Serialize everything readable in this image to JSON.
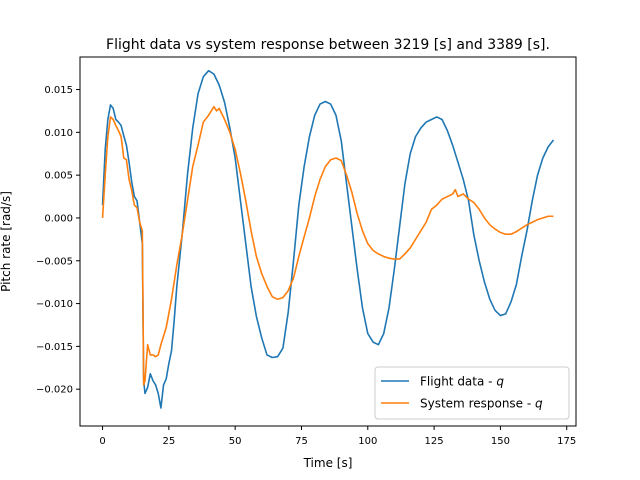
{
  "chart_data": {
    "type": "line",
    "title": "Flight data vs system response between 3219 [s] and 3389 [s].",
    "xlabel": "Time [s]",
    "ylabel": "Pitch rate [rad/s]",
    "xlim": [
      -8.5,
      178.5
    ],
    "ylim": [
      -0.0243,
      0.0188
    ],
    "xticks": [
      0,
      25,
      50,
      75,
      100,
      125,
      150,
      175
    ],
    "xtick_labels": [
      "0",
      "25",
      "50",
      "75",
      "100",
      "125",
      "150",
      "175"
    ],
    "yticks": [
      -0.02,
      -0.015,
      -0.01,
      -0.005,
      0.0,
      0.005,
      0.01,
      0.015
    ],
    "ytick_labels": [
      "−0.020",
      "−0.015",
      "−0.010",
      "−0.005",
      "0.000",
      "0.005",
      "0.010",
      "0.015"
    ],
    "grid": false,
    "legend_position": "lower-right",
    "series": [
      {
        "name": "Flight data - q",
        "color": "#1f77b4",
        "points": [
          [
            0,
            0.0015
          ],
          [
            1,
            0.008
          ],
          [
            2,
            0.0115
          ],
          [
            3,
            0.0132
          ],
          [
            4,
            0.0128
          ],
          [
            5,
            0.0115
          ],
          [
            6,
            0.0112
          ],
          [
            7,
            0.0108
          ],
          [
            8,
            0.0096
          ],
          [
            9,
            0.0085
          ],
          [
            10,
            0.0065
          ],
          [
            11,
            0.0042
          ],
          [
            12,
            0.0025
          ],
          [
            13,
            0.002
          ],
          [
            14,
            -0.0005
          ],
          [
            15,
            -0.003
          ],
          [
            15.5,
            -0.019
          ],
          [
            16,
            -0.0205
          ],
          [
            17,
            -0.0198
          ],
          [
            18,
            -0.0182
          ],
          [
            19,
            -0.019
          ],
          [
            20,
            -0.0195
          ],
          [
            21,
            -0.0205
          ],
          [
            22,
            -0.0222
          ],
          [
            23,
            -0.0195
          ],
          [
            24,
            -0.0188
          ],
          [
            25,
            -0.017
          ],
          [
            26,
            -0.0155
          ],
          [
            27,
            -0.012
          ],
          [
            28,
            -0.008
          ],
          [
            30,
            -0.002
          ],
          [
            32,
            0.005
          ],
          [
            34,
            0.0105
          ],
          [
            36,
            0.0145
          ],
          [
            38,
            0.0165
          ],
          [
            40,
            0.0172
          ],
          [
            42,
            0.0168
          ],
          [
            44,
            0.0155
          ],
          [
            46,
            0.0135
          ],
          [
            48,
            0.0105
          ],
          [
            50,
            0.007
          ],
          [
            52,
            0.002
          ],
          [
            54,
            -0.003
          ],
          [
            56,
            -0.008
          ],
          [
            58,
            -0.0115
          ],
          [
            60,
            -0.014
          ],
          [
            62,
            -0.016
          ],
          [
            64,
            -0.0163
          ],
          [
            66,
            -0.0162
          ],
          [
            68,
            -0.0152
          ],
          [
            70,
            -0.011
          ],
          [
            72,
            -0.005
          ],
          [
            74,
            0.0015
          ],
          [
            76,
            0.006
          ],
          [
            78,
            0.0095
          ],
          [
            80,
            0.012
          ],
          [
            82,
            0.0133
          ],
          [
            84,
            0.0136
          ],
          [
            86,
            0.0133
          ],
          [
            88,
            0.012
          ],
          [
            90,
            0.009
          ],
          [
            92,
            0.004
          ],
          [
            94,
            -0.001
          ],
          [
            96,
            -0.006
          ],
          [
            98,
            -0.0105
          ],
          [
            100,
            -0.0135
          ],
          [
            102,
            -0.0145
          ],
          [
            104,
            -0.0148
          ],
          [
            106,
            -0.0135
          ],
          [
            108,
            -0.0105
          ],
          [
            110,
            -0.006
          ],
          [
            112,
            -0.001
          ],
          [
            114,
            0.004
          ],
          [
            116,
            0.0075
          ],
          [
            118,
            0.0095
          ],
          [
            120,
            0.0105
          ],
          [
            122,
            0.0112
          ],
          [
            124,
            0.0115
          ],
          [
            126,
            0.0118
          ],
          [
            128,
            0.0115
          ],
          [
            130,
            0.0102
          ],
          [
            132,
            0.0085
          ],
          [
            134,
            0.0065
          ],
          [
            136,
            0.0045
          ],
          [
            138,
            0.002
          ],
          [
            140,
            -0.002
          ],
          [
            142,
            -0.005
          ],
          [
            144,
            -0.0075
          ],
          [
            146,
            -0.0095
          ],
          [
            148,
            -0.0108
          ],
          [
            150,
            -0.0114
          ],
          [
            152,
            -0.0112
          ],
          [
            154,
            -0.0098
          ],
          [
            156,
            -0.0078
          ],
          [
            158,
            -0.0045
          ],
          [
            160,
            -0.0015
          ],
          [
            162,
            0.002
          ],
          [
            164,
            0.005
          ],
          [
            166,
            0.007
          ],
          [
            168,
            0.0083
          ],
          [
            170,
            0.0091
          ]
        ]
      },
      {
        "name": "System response - q",
        "color": "#ff7f0e",
        "points": [
          [
            0,
            0.0
          ],
          [
            1,
            0.005
          ],
          [
            2,
            0.0095
          ],
          [
            3,
            0.0118
          ],
          [
            4,
            0.0115
          ],
          [
            5,
            0.0108
          ],
          [
            6,
            0.0102
          ],
          [
            7,
            0.0095
          ],
          [
            8,
            0.007
          ],
          [
            9,
            0.0068
          ],
          [
            10,
            0.0045
          ],
          [
            11,
            0.0032
          ],
          [
            12,
            0.0015
          ],
          [
            13,
            0.0012
          ],
          [
            14,
            -0.0005
          ],
          [
            15,
            -0.0015
          ],
          [
            15.5,
            -0.0195
          ],
          [
            16,
            -0.019
          ],
          [
            17,
            -0.0148
          ],
          [
            18,
            -0.016
          ],
          [
            19,
            -0.016
          ],
          [
            20,
            -0.0162
          ],
          [
            21,
            -0.016
          ],
          [
            22,
            -0.0148
          ],
          [
            24,
            -0.0128
          ],
          [
            26,
            -0.0095
          ],
          [
            28,
            -0.0055
          ],
          [
            30,
            -0.002
          ],
          [
            32,
            0.002
          ],
          [
            34,
            0.006
          ],
          [
            36,
            0.0085
          ],
          [
            38,
            0.0112
          ],
          [
            40,
            0.012
          ],
          [
            41,
            0.0125
          ],
          [
            42,
            0.013
          ],
          [
            43,
            0.0125
          ],
          [
            44,
            0.0128
          ],
          [
            46,
            0.0115
          ],
          [
            48,
            0.01
          ],
          [
            50,
            0.008
          ],
          [
            52,
            0.0052
          ],
          [
            54,
            0.002
          ],
          [
            56,
            -0.0015
          ],
          [
            58,
            -0.0045
          ],
          [
            60,
            -0.0065
          ],
          [
            62,
            -0.008
          ],
          [
            64,
            -0.0092
          ],
          [
            66,
            -0.0095
          ],
          [
            68,
            -0.0093
          ],
          [
            70,
            -0.0085
          ],
          [
            72,
            -0.007
          ],
          [
            74,
            -0.0045
          ],
          [
            76,
            -0.0022
          ],
          [
            78,
            0.0
          ],
          [
            80,
            0.0025
          ],
          [
            82,
            0.0045
          ],
          [
            84,
            0.006
          ],
          [
            86,
            0.0068
          ],
          [
            88,
            0.007
          ],
          [
            90,
            0.0067
          ],
          [
            92,
            0.005
          ],
          [
            94,
            0.003
          ],
          [
            96,
            0.0005
          ],
          [
            98,
            -0.0015
          ],
          [
            100,
            -0.003
          ],
          [
            102,
            -0.0038
          ],
          [
            104,
            -0.0042
          ],
          [
            106,
            -0.0045
          ],
          [
            108,
            -0.0047
          ],
          [
            110,
            -0.0048
          ],
          [
            112,
            -0.0048
          ],
          [
            114,
            -0.0042
          ],
          [
            116,
            -0.0035
          ],
          [
            118,
            -0.0025
          ],
          [
            120,
            -0.0015
          ],
          [
            122,
            -0.0005
          ],
          [
            124,
            0.001
          ],
          [
            126,
            0.0015
          ],
          [
            128,
            0.0022
          ],
          [
            130,
            0.0025
          ],
          [
            132,
            0.0028
          ],
          [
            133,
            0.0033
          ],
          [
            134,
            0.0025
          ],
          [
            136,
            0.0028
          ],
          [
            138,
            0.0022
          ],
          [
            140,
            0.0018
          ],
          [
            142,
            0.001
          ],
          [
            144,
            0.0
          ],
          [
            146,
            -0.0008
          ],
          [
            148,
            -0.0013
          ],
          [
            150,
            -0.0017
          ],
          [
            152,
            -0.0019
          ],
          [
            154,
            -0.0019
          ],
          [
            156,
            -0.0016
          ],
          [
            158,
            -0.0012
          ],
          [
            160,
            -0.0008
          ],
          [
            162,
            -0.0005
          ],
          [
            164,
            -0.0002
          ],
          [
            166,
            0.0
          ],
          [
            168,
            0.0002
          ],
          [
            170,
            0.0002
          ]
        ]
      }
    ]
  }
}
